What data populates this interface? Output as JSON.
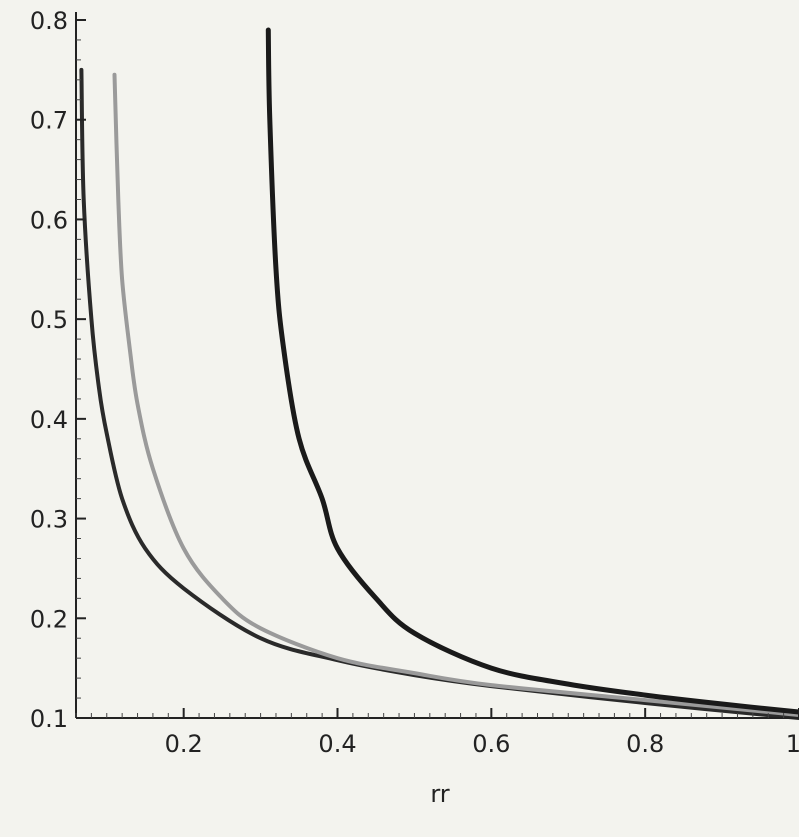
{
  "chart_data": {
    "type": "line",
    "title": "",
    "xlabel": "rr",
    "ylabel": "",
    "xlim": [
      0.06,
      1.0
    ],
    "ylim": [
      0.1,
      0.8
    ],
    "grid": false,
    "legend": "none",
    "x_ticks": [
      {
        "value": 0.2,
        "label": "0.2"
      },
      {
        "value": 0.4,
        "label": "0.4"
      },
      {
        "value": 0.6,
        "label": "0.6"
      },
      {
        "value": 0.8,
        "label": "0.8"
      },
      {
        "value": 1.0,
        "label": "1"
      }
    ],
    "y_ticks": [
      {
        "value": 0.1,
        "label": "0.1"
      },
      {
        "value": 0.2,
        "label": "0.2"
      },
      {
        "value": 0.3,
        "label": "0.3"
      },
      {
        "value": 0.4,
        "label": "0.4"
      },
      {
        "value": 0.5,
        "label": "0.5"
      },
      {
        "value": 0.6,
        "label": "0.6"
      },
      {
        "value": 0.7,
        "label": "0.7"
      },
      {
        "value": 0.8,
        "label": "0.8"
      }
    ],
    "series": [
      {
        "color": "#2a2a2a",
        "width": 4,
        "x": [
          0.067,
          0.07,
          0.08,
          0.09,
          0.1,
          0.12,
          0.15,
          0.2,
          0.3,
          0.4,
          0.5,
          0.6,
          0.8,
          1.0
        ],
        "y": [
          0.75,
          0.62,
          0.5,
          0.43,
          0.385,
          0.32,
          0.27,
          0.23,
          0.18,
          0.158,
          0.143,
          0.132,
          0.115,
          0.1
        ]
      },
      {
        "color": "#9a9a9a",
        "width": 4,
        "x": [
          0.11,
          0.115,
          0.12,
          0.13,
          0.14,
          0.16,
          0.2,
          0.25,
          0.3,
          0.4,
          0.5,
          0.6,
          0.8,
          1.0
        ],
        "y": [
          0.745,
          0.62,
          0.54,
          0.47,
          0.415,
          0.35,
          0.27,
          0.22,
          0.19,
          0.16,
          0.145,
          0.133,
          0.118,
          0.103
        ]
      },
      {
        "color": "#1a1a1a",
        "width": 5,
        "x": [
          0.31,
          0.312,
          0.32,
          0.33,
          0.35,
          0.38,
          0.4,
          0.45,
          0.5,
          0.6,
          0.7,
          0.8,
          0.9,
          1.0
        ],
        "y": [
          0.79,
          0.7,
          0.55,
          0.47,
          0.38,
          0.32,
          0.27,
          0.22,
          0.185,
          0.15,
          0.134,
          0.123,
          0.114,
          0.106
        ]
      }
    ]
  }
}
